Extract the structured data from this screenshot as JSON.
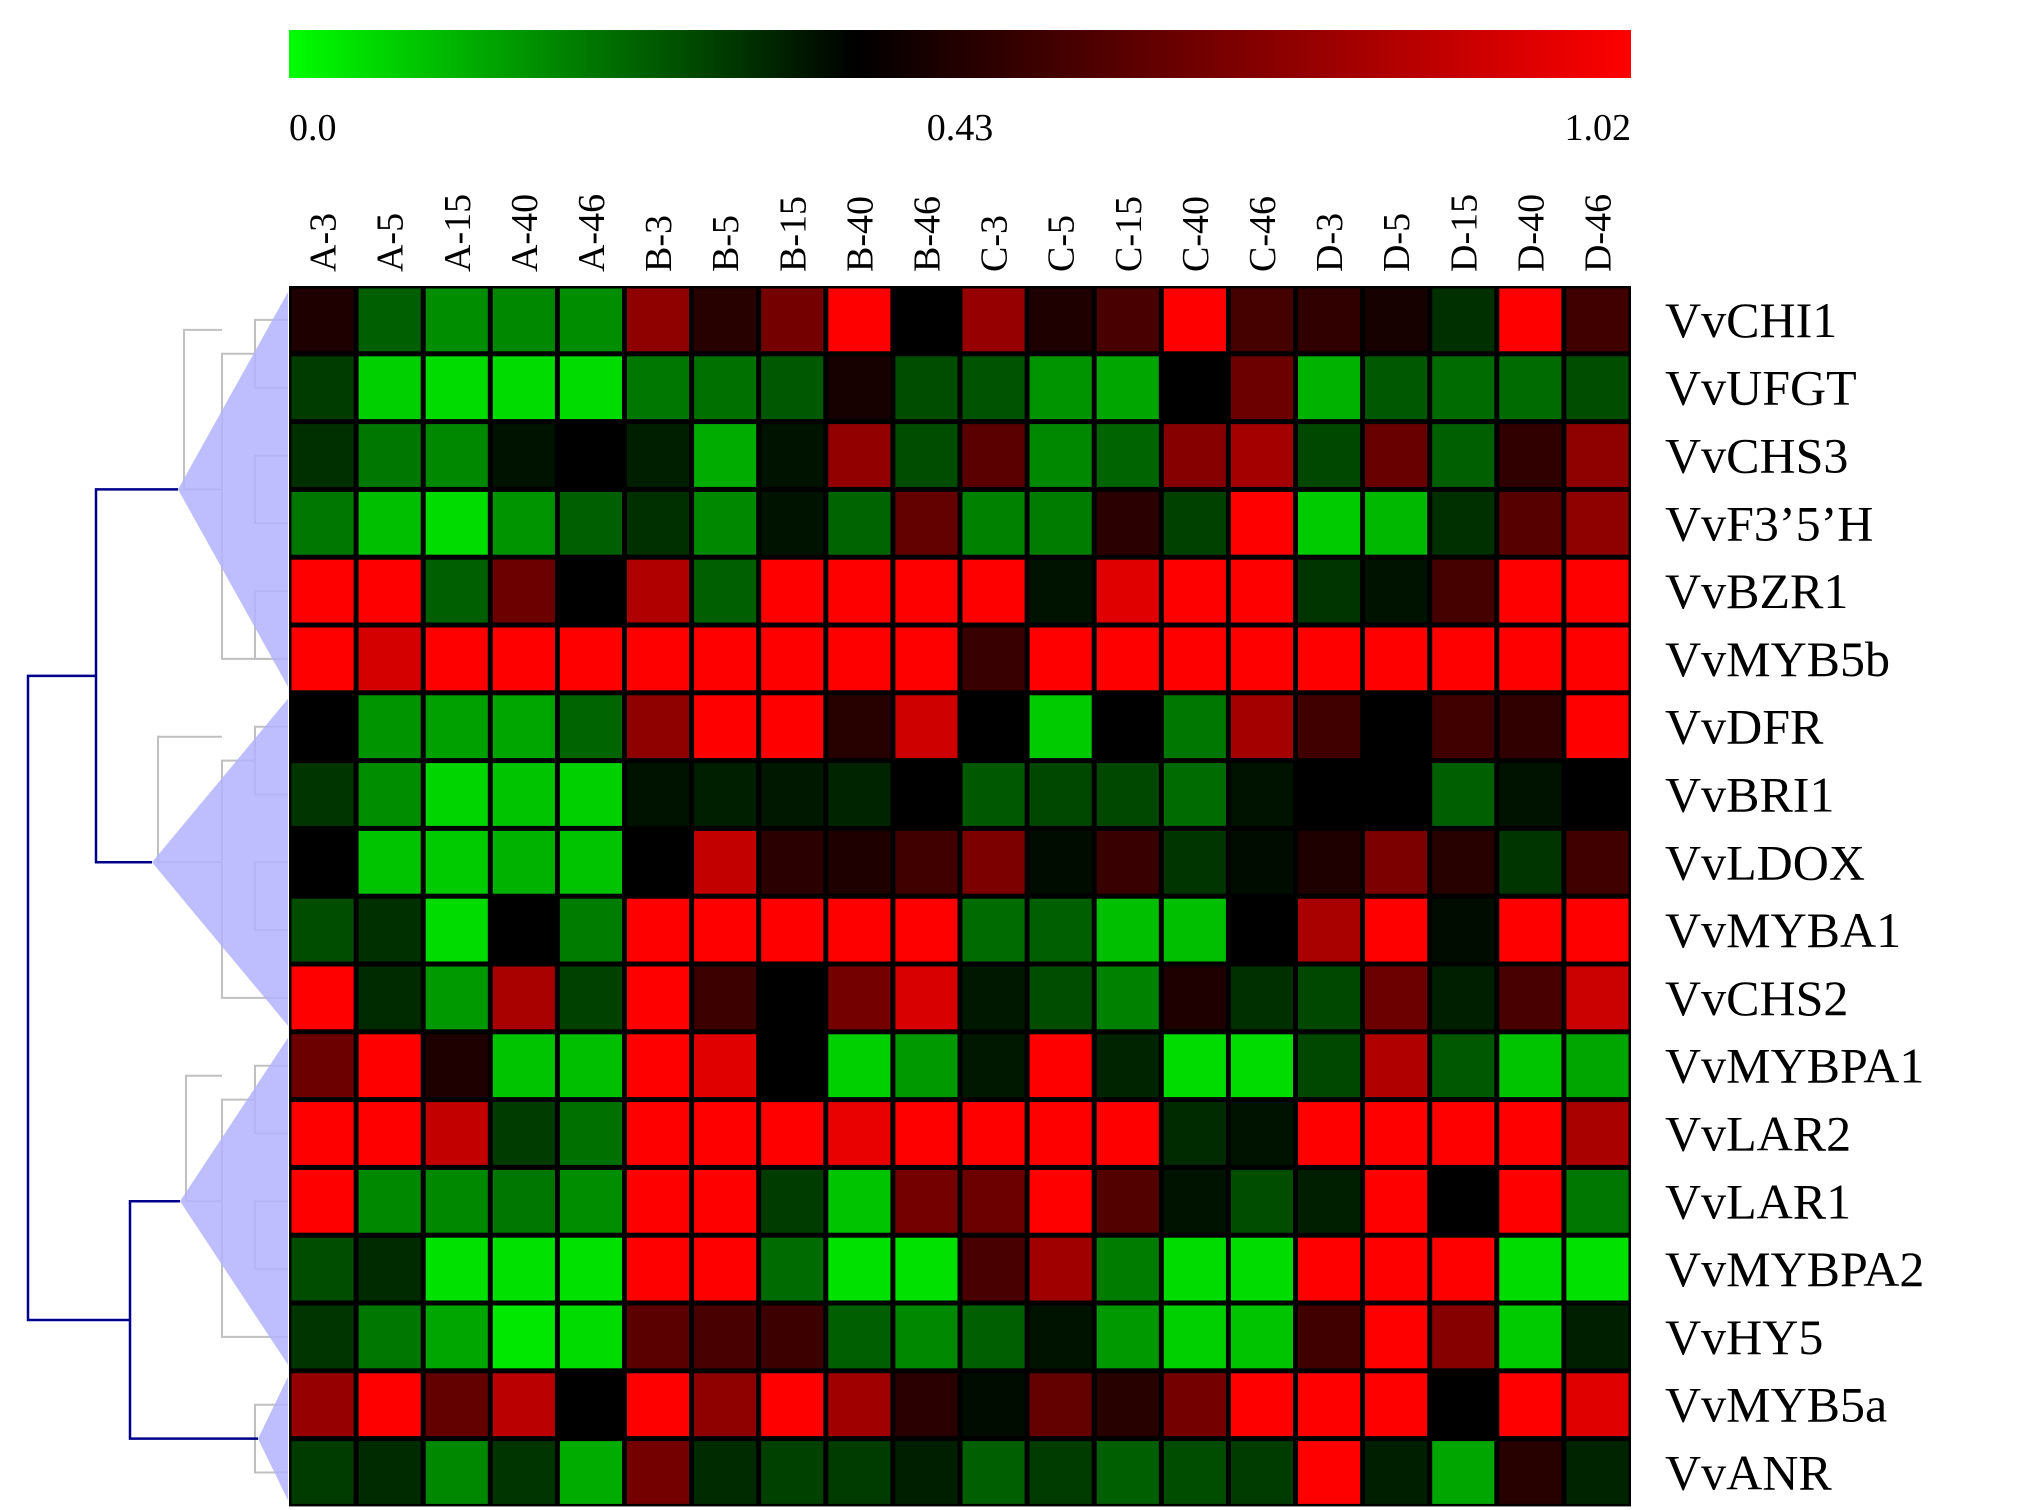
{
  "chart_data": {
    "type": "heatmap",
    "colorbar": {
      "min": 0.0,
      "mid": 0.43,
      "max": 1.02,
      "tick_labels": [
        "0.0",
        "0.43",
        "1.02"
      ],
      "colors": {
        "low": "#00ff00",
        "mid": "#000000",
        "high": "#ff0000"
      }
    },
    "columns": [
      "A-3",
      "A-5",
      "A-15",
      "A-40",
      "A-46",
      "B-3",
      "B-5",
      "B-15",
      "B-40",
      "B-46",
      "C-3",
      "C-5",
      "C-15",
      "C-40",
      "C-46",
      "D-3",
      "D-5",
      "D-15",
      "D-40",
      "D-46"
    ],
    "rows": [
      "VvCHI1",
      "VvUFGT",
      "VvCHS3",
      "VvF3’5’H",
      "VvBZR1",
      "VvMYB5b",
      "VvDFR",
      "VvBRI1",
      "VvLDOX",
      "VvMYBA1",
      "VvCHS2",
      "VvMYBPA1",
      "VvLAR2",
      "VvLAR1",
      "VvMYBPA2",
      "VvHY5",
      "VvMYB5a",
      "VvANR"
    ],
    "values": [
      [
        0.5,
        0.27,
        0.19,
        0.2,
        0.19,
        0.76,
        0.52,
        0.7,
        1.02,
        0.43,
        0.78,
        0.5,
        0.6,
        1.02,
        0.59,
        0.54,
        0.48,
        0.35,
        1.02,
        0.58
      ],
      [
        0.33,
        0.08,
        0.06,
        0.06,
        0.06,
        0.23,
        0.24,
        0.28,
        0.48,
        0.3,
        0.29,
        0.18,
        0.15,
        0.43,
        0.68,
        0.13,
        0.28,
        0.25,
        0.25,
        0.3
      ],
      [
        0.35,
        0.23,
        0.2,
        0.4,
        0.43,
        0.38,
        0.14,
        0.4,
        0.77,
        0.3,
        0.64,
        0.2,
        0.26,
        0.74,
        0.81,
        0.31,
        0.67,
        0.27,
        0.54,
        0.76
      ],
      [
        0.23,
        0.11,
        0.06,
        0.18,
        0.27,
        0.35,
        0.2,
        0.4,
        0.26,
        0.66,
        0.21,
        0.22,
        0.53,
        0.32,
        1.02,
        0.09,
        0.12,
        0.35,
        0.63,
        0.76
      ],
      [
        1.02,
        1.02,
        0.27,
        0.68,
        0.43,
        0.84,
        0.27,
        1.02,
        1.02,
        1.02,
        1.02,
        0.4,
        0.95,
        1.02,
        1.02,
        0.34,
        0.4,
        0.59,
        1.02,
        1.02
      ],
      [
        1.02,
        0.92,
        1.02,
        1.02,
        1.02,
        1.02,
        1.02,
        1.02,
        1.02,
        1.02,
        0.56,
        1.02,
        1.02,
        1.02,
        1.02,
        1.02,
        1.02,
        1.02,
        1.02,
        1.02
      ],
      [
        0.43,
        0.18,
        0.16,
        0.15,
        0.26,
        0.76,
        1.02,
        1.02,
        0.52,
        0.91,
        0.43,
        0.09,
        0.43,
        0.23,
        0.81,
        0.58,
        0.43,
        0.58,
        0.54,
        1.02
      ],
      [
        0.34,
        0.19,
        0.07,
        0.1,
        0.08,
        0.4,
        0.38,
        0.39,
        0.37,
        0.43,
        0.28,
        0.31,
        0.31,
        0.25,
        0.4,
        0.43,
        0.43,
        0.27,
        0.4,
        0.43
      ],
      [
        0.43,
        0.1,
        0.09,
        0.13,
        0.1,
        0.43,
        0.88,
        0.53,
        0.5,
        0.58,
        0.72,
        0.41,
        0.56,
        0.34,
        0.41,
        0.5,
        0.72,
        0.52,
        0.34,
        0.58
      ],
      [
        0.3,
        0.35,
        0.06,
        0.43,
        0.22,
        1.02,
        1.02,
        1.02,
        1.02,
        1.02,
        0.25,
        0.27,
        0.11,
        0.11,
        0.43,
        0.82,
        1.02,
        0.41,
        1.02,
        1.02
      ],
      [
        1.02,
        0.36,
        0.17,
        0.82,
        0.32,
        1.02,
        0.57,
        0.43,
        0.7,
        0.93,
        0.39,
        0.3,
        0.21,
        0.5,
        0.35,
        0.31,
        0.68,
        0.38,
        0.6,
        0.9
      ],
      [
        0.68,
        1.02,
        0.5,
        0.1,
        0.11,
        1.02,
        0.95,
        0.43,
        0.08,
        0.17,
        0.39,
        1.02,
        0.37,
        0.06,
        0.06,
        0.31,
        0.84,
        0.28,
        0.1,
        0.15
      ],
      [
        1.02,
        1.02,
        0.88,
        0.33,
        0.24,
        1.02,
        1.02,
        1.02,
        0.97,
        1.02,
        1.02,
        1.02,
        1.02,
        0.36,
        0.4,
        1.02,
        1.02,
        1.02,
        1.02,
        0.82
      ],
      [
        1.02,
        0.2,
        0.2,
        0.23,
        0.19,
        1.02,
        1.02,
        0.33,
        0.1,
        0.7,
        0.68,
        1.02,
        0.62,
        0.4,
        0.3,
        0.38,
        1.02,
        0.43,
        1.02,
        0.23
      ],
      [
        0.3,
        0.36,
        0.05,
        0.05,
        0.05,
        1.02,
        1.02,
        0.25,
        0.05,
        0.05,
        0.6,
        0.8,
        0.22,
        0.06,
        0.06,
        1.02,
        1.02,
        1.02,
        0.06,
        0.05
      ],
      [
        0.34,
        0.23,
        0.15,
        0.04,
        0.06,
        0.64,
        0.6,
        0.57,
        0.27,
        0.2,
        0.27,
        0.4,
        0.17,
        0.08,
        0.1,
        0.58,
        1.02,
        0.74,
        0.09,
        0.38
      ],
      [
        0.78,
        1.02,
        0.66,
        0.86,
        0.43,
        1.02,
        0.76,
        1.02,
        0.8,
        0.53,
        0.41,
        0.66,
        0.52,
        0.7,
        1.02,
        1.02,
        1.02,
        0.43,
        1.02,
        0.95
      ],
      [
        0.33,
        0.36,
        0.2,
        0.34,
        0.14,
        0.7,
        0.36,
        0.32,
        0.33,
        0.38,
        0.27,
        0.33,
        0.27,
        0.3,
        0.33,
        1.02,
        0.38,
        0.15,
        0.52,
        0.37
      ]
    ],
    "dendrogram": {
      "tree_color": "#00008b",
      "subtree_color": "#c0c0c0",
      "cluster_fill": "#b3b3ff",
      "clusters": [
        {
          "rows": [
            "VvCHI1",
            "VvUFGT",
            "VvCHS3",
            "VvF3’5’H",
            "VvBZR1",
            "VvMYB5b"
          ]
        },
        {
          "rows": [
            "VvDFR",
            "VvBRI1",
            "VvLDOX",
            "VvMYBA1",
            "VvCHS2"
          ]
        },
        {
          "rows": [
            "VvMYBPA1",
            "VvLAR2",
            "VvLAR1",
            "VvMYBPA2",
            "VvHY5"
          ]
        },
        {
          "rows": [
            "VvMYB5a",
            "VvANR"
          ]
        }
      ]
    }
  }
}
